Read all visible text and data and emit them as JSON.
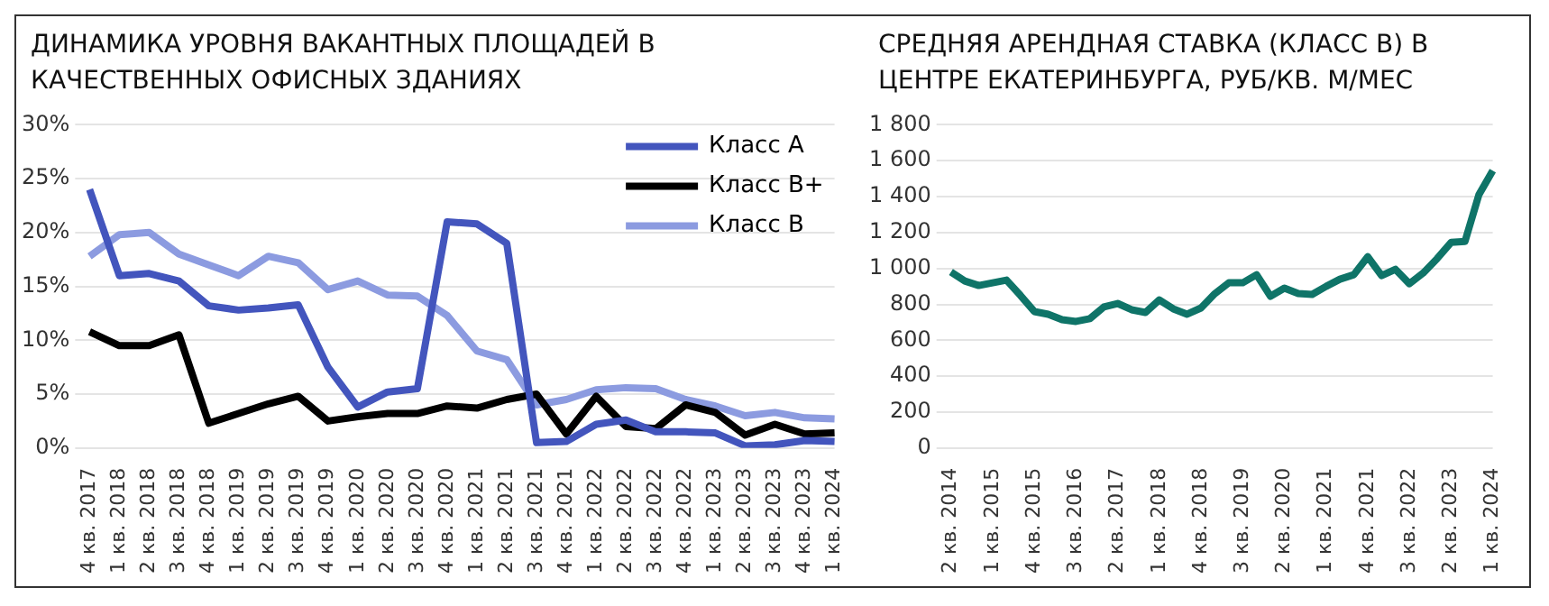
{
  "chart_data": [
    {
      "type": "line",
      "title": "ДИНАМИКА УРОВНЯ ВАКАНТНЫХ ПЛОЩАДЕЙ В КАЧЕСТВЕННЫХ ОФИСНЫХ ЗДАНИЯХ",
      "categories": [
        "4 кв. 2017",
        "1 кв. 2018",
        "2 кв. 2018",
        "3 кв. 2018",
        "4 кв. 2018",
        "1 кв. 2019",
        "2 кв. 2019",
        "3 кв. 2019",
        "4 кв. 2019",
        "1 кв. 2020",
        "2 кв. 2020",
        "3 кв. 2020",
        "4 кв. 2020",
        "1 кв. 2021",
        "2 кв. 2021",
        "3 кв. 2021",
        "4 кв. 2021",
        "1 кв. 2022",
        "2 кв. 2022",
        "3 кв. 2022",
        "4 кв. 2022",
        "1 кв. 2023",
        "2 кв. 2023",
        "3 кв. 2023",
        "4 кв. 2023",
        "1 кв. 2024"
      ],
      "series": [
        {
          "name": "Класс А",
          "color": "#4355bd",
          "values": [
            24,
            16,
            16.2,
            15.5,
            13.2,
            12.8,
            13,
            13.3,
            7.5,
            3.8,
            5.2,
            5.5,
            21,
            20.8,
            19,
            0.5,
            0.6,
            2.2,
            2.6,
            1.5,
            1.5,
            1.4,
            0.2,
            0.3,
            0.7,
            0.6
          ]
        },
        {
          "name": "Класс В+",
          "color": "#000000",
          "values": [
            10.8,
            9.5,
            9.5,
            10.5,
            2.3,
            3.2,
            4.1,
            4.8,
            2.5,
            2.9,
            3.2,
            3.2,
            3.9,
            3.7,
            4.5,
            5,
            1.3,
            4.8,
            2,
            1.8,
            4,
            3.3,
            1.2,
            2.2,
            1.3,
            1.4
          ]
        },
        {
          "name": "Класс В",
          "color": "#8c9be0",
          "values": [
            17.8,
            19.8,
            20,
            18,
            17,
            16,
            17.8,
            17.2,
            14.7,
            15.5,
            14.2,
            14.1,
            12.3,
            9,
            8.2,
            4,
            4.5,
            5.4,
            5.6,
            5.5,
            4.5,
            3.9,
            3,
            3.3,
            2.8,
            2.7
          ]
        }
      ],
      "ylim": [
        0,
        30
      ],
      "yticks": [
        {
          "value": 0,
          "label": "0%"
        },
        {
          "value": 5,
          "label": "5%"
        },
        {
          "value": 10,
          "label": "10%"
        },
        {
          "value": 15,
          "label": "15%"
        },
        {
          "value": 20,
          "label": "20%"
        },
        {
          "value": 25,
          "label": "25%"
        },
        {
          "value": 30,
          "label": "30%"
        }
      ],
      "grid": "y",
      "legend": "top right",
      "marker": "none"
    },
    {
      "type": "line",
      "title": "СРЕДНЯЯ АРЕНДНАЯ СТАВКА (КЛАСС В) В ЦЕНТРЕ ЕКАТЕРИНБУРГА, РУБ/КВ. М/МЕС",
      "categories": [
        "2 кв. 2014",
        null,
        null,
        "1 кв. 2015",
        null,
        null,
        "4 кв. 2015",
        null,
        null,
        "3 кв. 2016",
        null,
        null,
        "2 кв. 2017",
        null,
        null,
        "1 кв. 2018",
        null,
        null,
        "4 кв. 2018",
        null,
        null,
        "3 кв. 2019",
        null,
        null,
        "2 кв. 2020",
        null,
        null,
        "1 кв. 2021",
        null,
        null,
        "4 кв. 2021",
        null,
        null,
        "3 кв. 2022",
        null,
        null,
        "2 кв. 2023",
        null,
        null,
        "1 кв. 2024"
      ],
      "series": [
        {
          "color": "#0f7468",
          "values": [
            980,
            930,
            905,
            920,
            935,
            850,
            760,
            745,
            715,
            705,
            720,
            785,
            805,
            770,
            755,
            825,
            775,
            745,
            780,
            860,
            920,
            920,
            965,
            845,
            890,
            860,
            855,
            900,
            940,
            965,
            1065,
            960,
            995,
            915,
            975,
            1055,
            1145,
            1150,
            1410,
            1545
          ]
        }
      ],
      "ylim": [
        0,
        1800
      ],
      "yticks": [
        0,
        200,
        400,
        600,
        800,
        {
          "value": 1000,
          "label": "1 000"
        },
        {
          "value": 1200,
          "label": "1 200"
        },
        {
          "value": 1400,
          "label": "1 400"
        },
        {
          "value": 1600,
          "label": "1 600"
        },
        {
          "value": 1800,
          "label": "1 800"
        }
      ],
      "grid": "y",
      "marker": "none"
    }
  ]
}
